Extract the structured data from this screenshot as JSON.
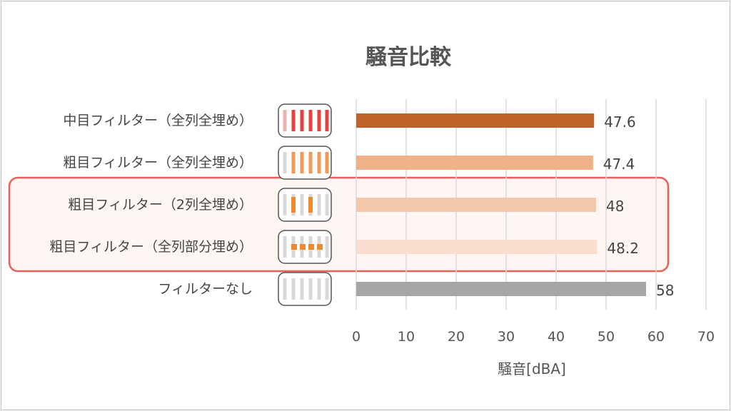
{
  "chart_data": {
    "type": "bar",
    "orientation": "horizontal",
    "title": "騒音比較",
    "xlabel": "騒音[dBA]",
    "ylabel": "",
    "xlim": [
      0,
      70
    ],
    "xticks": [
      0,
      10,
      20,
      30,
      40,
      50,
      60,
      70
    ],
    "grid": true,
    "categories": [
      "中目フィルター（全列全埋め）",
      "粗目フィルター（全列全埋め）",
      "粗目フィルター（2列全埋め）",
      "粗目フィルター（全列部分埋め）",
      "フィルターなし"
    ],
    "values": [
      47.6,
      47.4,
      48,
      48.2,
      58
    ],
    "value_labels": [
      "47.6",
      "47.4",
      "48",
      "48.2",
      "58"
    ],
    "colors": [
      "#c0622a",
      "#f0b088",
      "#f4c8aa",
      "#f9ddce",
      "#a6a6a6"
    ],
    "icons": [
      "red-stripes-full-icon",
      "orange-stripes-full-icon",
      "orange-stripes-two-icon",
      "orange-dashes-partial-icon",
      "gray-stripes-empty-icon"
    ],
    "highlight": {
      "rows": [
        2,
        3
      ],
      "color": "#e8605a"
    }
  }
}
